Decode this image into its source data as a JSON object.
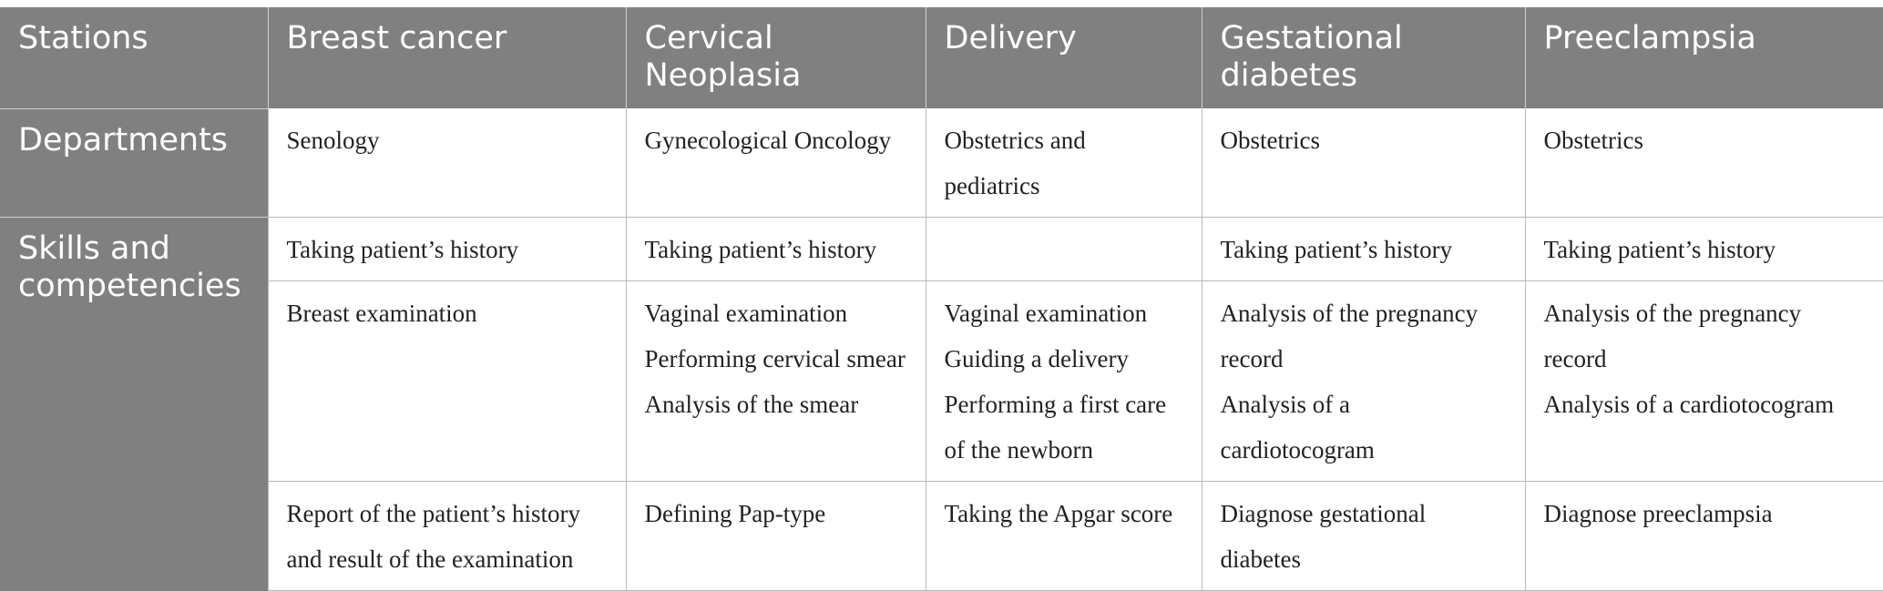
{
  "headers": [
    "Stations",
    "Breast cancer",
    "Cervical Neoplasia",
    "Delivery",
    "Gestational diabetes",
    "Preeclampsia"
  ],
  "departments": {
    "label": "Departments",
    "cells": [
      "Senology",
      "Gynecological Oncology",
      "Obstetrics and pediatrics",
      "Obstetrics",
      "Obstetrics"
    ]
  },
  "skills": {
    "label": "Skills and competencies",
    "rows": [
      {
        "cells": [
          [
            "Taking patient’s history"
          ],
          [
            "Taking patient’s history"
          ],
          [],
          [
            "Taking patient’s history"
          ],
          [
            "Taking patient’s history"
          ]
        ]
      },
      {
        "cells": [
          [
            "Breast examination"
          ],
          [
            "Vaginal examination",
            "Performing cervical smear",
            "Analysis of the smear"
          ],
          [
            "Vaginal examination",
            "Guiding a delivery",
            "Performing a first care of the newborn"
          ],
          [
            "Analysis of the pregnancy record",
            "Analysis of a cardiotocogram"
          ],
          [
            "Analysis of the pregnancy record",
            "Analysis of a cardiotocogram"
          ]
        ]
      },
      {
        "cells": [
          [
            "Report of the patient’s history and result of the examination"
          ],
          [
            "Defining Pap-type"
          ],
          [
            "Taking the Apgar score"
          ],
          [
            "Diagnose gestational diabetes"
          ],
          [
            "Diagnose preeclampsia"
          ]
        ]
      }
    ]
  },
  "colors": {
    "header_bg": "#808080",
    "header_text": "#ffffff",
    "grid_line": "#b8b8b8"
  }
}
